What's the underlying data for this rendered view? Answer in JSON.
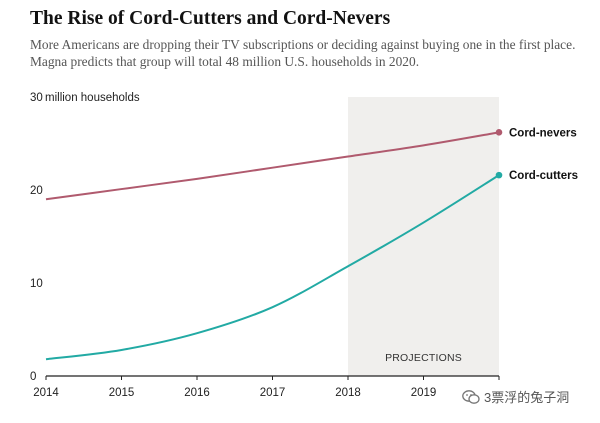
{
  "title": "The Rise of Cord-Cutters and Cord-Nevers",
  "subtitle": "More Americans are dropping their TV subscriptions or deciding against buying one in the first place. Magna predicts that group will total 48 million U.S. households in 2020.",
  "watermark": "3票浮的兔子洞",
  "colors": {
    "cord_nevers": "#b05a6e",
    "cord_cutters": "#22aaa4",
    "projection_band": "#f0efed",
    "axis": "#222222"
  },
  "chart_data": {
    "type": "line",
    "title": "The Rise of Cord-Cutters and Cord-Nevers",
    "xlabel": "",
    "ylabel": "million households",
    "x": [
      2014,
      2015,
      2016,
      2017,
      2018,
      2019,
      2020
    ],
    "x_tick_labels": [
      "2014",
      "2015",
      "2016",
      "2017",
      "2018",
      "2019"
    ],
    "xlim": [
      2014,
      2020
    ],
    "ylim": [
      0,
      30
    ],
    "y_ticks": [
      0,
      10,
      20,
      30
    ],
    "y_tick_labels": [
      "0",
      "10",
      "20",
      "30"
    ],
    "y_unit_label": "million households",
    "grid": false,
    "projection": {
      "from": 2018,
      "to": 2020,
      "label": "PROJECTIONS"
    },
    "series": [
      {
        "name": "Cord-nevers",
        "values": [
          19.0,
          20.1,
          21.2,
          22.4,
          23.6,
          24.8,
          26.2
        ]
      },
      {
        "name": "Cord-cutters",
        "values": [
          1.8,
          2.8,
          4.6,
          7.4,
          11.8,
          16.5,
          21.6
        ]
      }
    ]
  }
}
